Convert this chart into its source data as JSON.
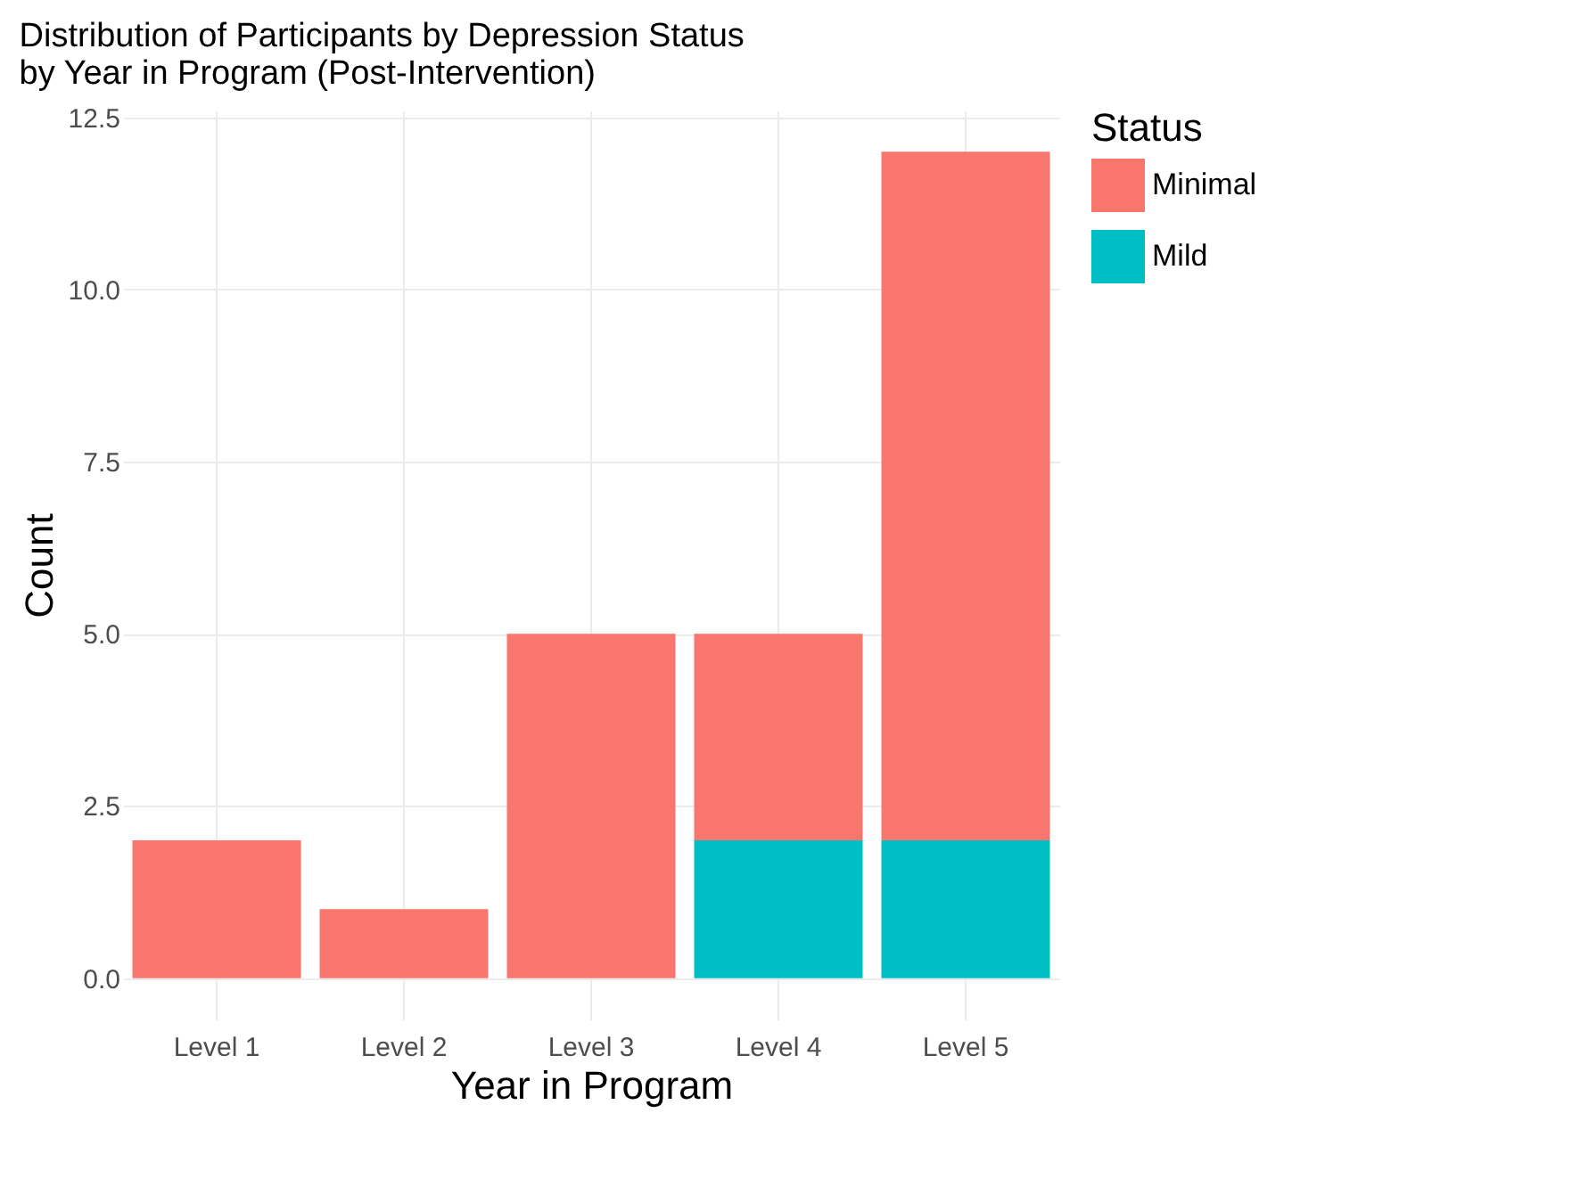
{
  "chart_data": {
    "type": "bar",
    "title": "Distribution of Participants by Depression Status\n by Year in Program (Post-Intervention)",
    "xlabel": "Year in Program",
    "ylabel": "Count",
    "legend_title": "Status",
    "categories": [
      "Level 1",
      "Level 2",
      "Level 3",
      "Level 4",
      "Level 5"
    ],
    "stacked": true,
    "series": [
      {
        "name": "Mild",
        "color": "#00bfc4",
        "values": [
          0,
          0,
          0,
          2,
          2
        ]
      },
      {
        "name": "Minimal",
        "color": "#f8766d",
        "values": [
          2,
          1,
          5,
          3,
          10
        ]
      }
    ],
    "ylim": [
      -0.6,
      12.6
    ],
    "yticks": [
      {
        "value": 0,
        "label": "0.0"
      },
      {
        "value": 2.5,
        "label": "2.5"
      },
      {
        "value": 5,
        "label": "5.0"
      },
      {
        "value": 7.5,
        "label": "7.5"
      },
      {
        "value": 10,
        "label": "10.0"
      },
      {
        "value": 12.5,
        "label": "12.5"
      }
    ],
    "grid": true,
    "legend": "right"
  }
}
